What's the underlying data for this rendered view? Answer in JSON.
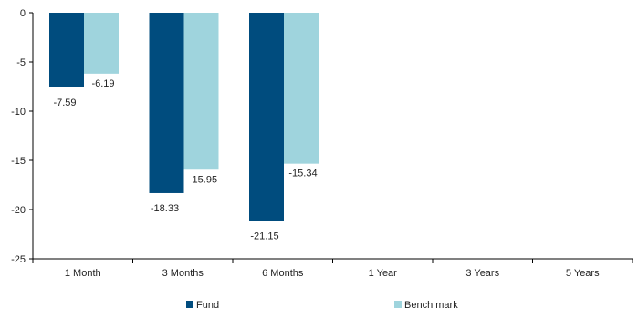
{
  "chart_data": {
    "type": "bar",
    "categories": [
      "1 Month",
      "3 Months",
      "6 Months",
      "1 Year",
      "3 Years",
      "5 Years"
    ],
    "series": [
      {
        "name": "Fund",
        "values": [
          -7.59,
          -18.33,
          -21.15,
          null,
          null,
          null
        ],
        "color": "#004c7e"
      },
      {
        "name": "Bench mark",
        "values": [
          -6.19,
          -15.95,
          -15.34,
          null,
          null,
          null
        ],
        "color": "#9fd4dd"
      }
    ],
    "data_labels": {
      "Fund": [
        "-7.59",
        "-18.33",
        "-21.15"
      ],
      "Bench mark": [
        "-6.19",
        "-15.95",
        "-15.34"
      ]
    },
    "y_ticks": [
      "0",
      "-5",
      "-10",
      "-15",
      "-20",
      "-25"
    ],
    "ylim": [
      -25,
      0
    ],
    "grid": false,
    "legend_position": "bottom",
    "title": "",
    "xlabel": "",
    "ylabel": ""
  }
}
